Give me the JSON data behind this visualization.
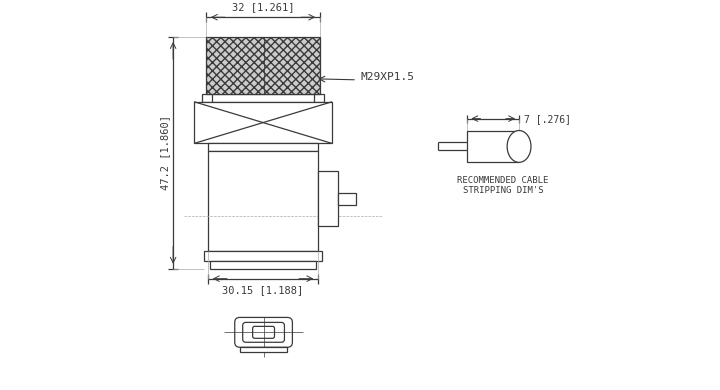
{
  "bg_color": "#ffffff",
  "line_color": "#3a3a3a",
  "dim_top": "32 [1.261]",
  "dim_left": "47.2 [1.860]",
  "dim_bottom": "30.15 [1.188]",
  "dim_cable": "7 [.276]",
  "label_thread": "M29XP1.5",
  "label_cable1": "RECOMMENDED CABLE",
  "label_cable2": "STRIPPING DIM'S"
}
